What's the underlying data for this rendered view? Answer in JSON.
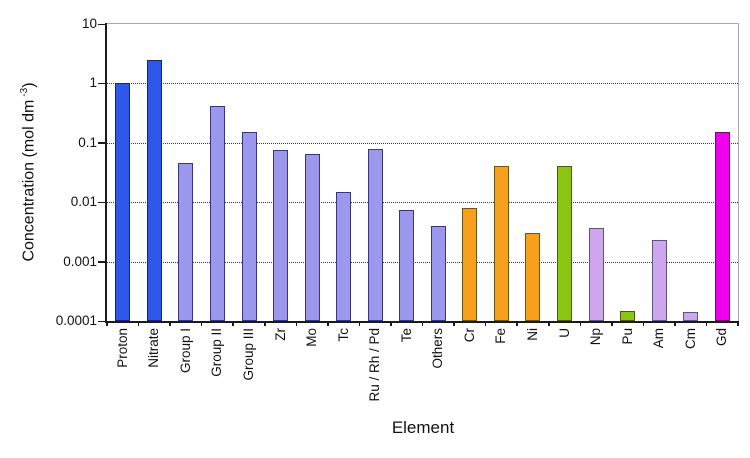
{
  "chart_data": {
    "type": "bar",
    "title": "",
    "xlabel": "Element",
    "ylabel": "Concentration (mol dm -3)",
    "ylabel_parts": {
      "main": "Concentration (mol dm",
      "sup": "-3",
      "close": ")"
    },
    "y_scale": "log10",
    "ylim": [
      0.0001,
      10
    ],
    "y_ticks": [
      "10",
      "1",
      "0.1",
      "0.01",
      "0.001",
      "0.0001"
    ],
    "gridlines_at": [
      1,
      0.1,
      0.01,
      0.001
    ],
    "grid": "horizontal-dotted",
    "legend": "none",
    "categories": [
      "Proton",
      "Nitrate",
      "Group I",
      "Group II",
      "Group III",
      "Zr",
      "Mo",
      "Tc",
      "Ru / Rh / Pd",
      "Te",
      "Others",
      "Cr",
      "Fe",
      "Ni",
      "U",
      "Np",
      "Pu",
      "Am",
      "Cm",
      "Gd"
    ],
    "values": [
      1.0,
      2.5,
      0.045,
      0.42,
      0.15,
      0.075,
      0.065,
      0.015,
      0.08,
      0.0075,
      0.004,
      0.008,
      0.04,
      0.003,
      0.04,
      0.0037,
      0.00015,
      0.0023,
      0.00014,
      0.15
    ],
    "color_keys": [
      "blue",
      "blue",
      "periwinkle",
      "periwinkle",
      "periwinkle",
      "periwinkle",
      "periwinkle",
      "periwinkle",
      "periwinkle",
      "periwinkle",
      "periwinkle",
      "orange",
      "orange",
      "orange",
      "green",
      "lavender",
      "green",
      "lavender",
      "lavender",
      "magenta"
    ],
    "colors": {
      "blue": {
        "fill": "#2d58e8",
        "edge": "#1b2377"
      },
      "periwinkle": {
        "fill": "#9b98ee",
        "edge": "#363680"
      },
      "orange": {
        "fill": "#f8a01c",
        "edge": "#6d5513"
      },
      "green": {
        "fill": "#8cc412",
        "edge": "#4a5a10"
      },
      "lavender": {
        "fill": "#cda6ee",
        "edge": "#5e5480"
      },
      "magenta": {
        "fill": "#ee00ee",
        "edge": "#73086f"
      }
    },
    "frame_color": "#a8a8a8",
    "axis_color": "#1a1a1a",
    "background": "#ffffff"
  }
}
